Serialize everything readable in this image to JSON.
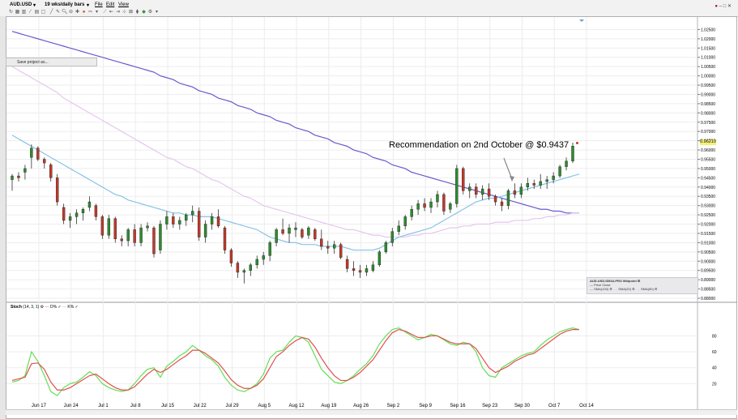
{
  "toolbar": {
    "symbol": "AUD.USD",
    "period": "19 wks/daily bars",
    "menus": [
      "File",
      "Edit",
      "View"
    ],
    "window_controls": "– □ ✕"
  },
  "context_menu": {
    "item": "Save project as..."
  },
  "annotation": "Recommendation on 2nd October @ $0.9437",
  "price_tag": "0.96210",
  "legend": {
    "title": "AUD.USD.IDEALPRO Midpoint",
    "price_close": "Price Close",
    "sma100": "SMA(100)",
    "sma20": "SMA(20)",
    "sma50": "SMA(50)"
  },
  "stoch_legend": {
    "name": "Stoch",
    "params": "(14, 3, 1)",
    "d_label": "D%",
    "k_label": "K%"
  },
  "colors": {
    "up": "#2e8b2e",
    "down": "#c0392b",
    "sma100": "#6a5acd",
    "sma20": "#87c3e8",
    "sma50": "#e6c6ee",
    "stoch_d": "#e05050",
    "stoch_k": "#66dd55"
  },
  "chart_data": {
    "type": "candlestick",
    "price_axis": {
      "ylim": [
        0.88,
        1.03
      ],
      "ticks": [
        "1.02500",
        "1.02000",
        "1.01500",
        "1.01000",
        "1.00500",
        "1.00000",
        "0.99500",
        "0.99000",
        "0.98500",
        "0.98000",
        "0.97500",
        "0.97000",
        "0.96500",
        "0.96000",
        "0.95500",
        "0.95000",
        "0.94500",
        "0.94000",
        "0.93500",
        "0.93000",
        "0.92500",
        "0.92000",
        "0.91500",
        "0.91000",
        "0.90500",
        "0.90000",
        "0.89500",
        "0.89000",
        "0.88500",
        "0.88000"
      ]
    },
    "x_labels": [
      "Jun 17",
      "Jun 24",
      "Jul 1",
      "Jul 8",
      "Jul 15",
      "Jul 22",
      "Jul 29",
      "Aug 5",
      "Aug 12",
      "Aug 19",
      "Aug 26",
      "Sep 2",
      "Sep 9",
      "Sep 16",
      "Sep 23",
      "Sep 30",
      "Oct 7",
      "Oct 14"
    ],
    "candles": [
      [
        0.944,
        0.947,
        0.938,
        0.946
      ],
      [
        0.946,
        0.948,
        0.943,
        0.945
      ],
      [
        0.948,
        0.952,
        0.944,
        0.95
      ],
      [
        0.956,
        0.963,
        0.95,
        0.961
      ],
      [
        0.961,
        0.962,
        0.954,
        0.955
      ],
      [
        0.955,
        0.956,
        0.95,
        0.953
      ],
      [
        0.952,
        0.953,
        0.943,
        0.945
      ],
      [
        0.945,
        0.947,
        0.93,
        0.932
      ],
      [
        0.929,
        0.931,
        0.92,
        0.922
      ],
      [
        0.922,
        0.926,
        0.918,
        0.924
      ],
      [
        0.924,
        0.928,
        0.92,
        0.926
      ],
      [
        0.926,
        0.929,
        0.922,
        0.928
      ],
      [
        0.929,
        0.935,
        0.927,
        0.932
      ],
      [
        0.93,
        0.931,
        0.922,
        0.924
      ],
      [
        0.924,
        0.925,
        0.912,
        0.914
      ],
      [
        0.914,
        0.925,
        0.912,
        0.923
      ],
      [
        0.923,
        0.924,
        0.91,
        0.912
      ],
      [
        0.912,
        0.914,
        0.908,
        0.911
      ],
      [
        0.911,
        0.918,
        0.908,
        0.917
      ],
      [
        0.917,
        0.92,
        0.908,
        0.91
      ],
      [
        0.91,
        0.92,
        0.908,
        0.918
      ],
      [
        0.918,
        0.921,
        0.916,
        0.919
      ],
      [
        0.918,
        0.919,
        0.902,
        0.904
      ],
      [
        0.906,
        0.922,
        0.904,
        0.92
      ],
      [
        0.92,
        0.927,
        0.917,
        0.924
      ],
      [
        0.924,
        0.926,
        0.918,
        0.92
      ],
      [
        0.92,
        0.924,
        0.917,
        0.922
      ],
      [
        0.922,
        0.926,
        0.919,
        0.925
      ],
      [
        0.925,
        0.93,
        0.921,
        0.927
      ],
      [
        0.927,
        0.929,
        0.911,
        0.913
      ],
      [
        0.913,
        0.922,
        0.91,
        0.92
      ],
      [
        0.92,
        0.926,
        0.917,
        0.924
      ],
      [
        0.924,
        0.928,
        0.918,
        0.919
      ],
      [
        0.918,
        0.919,
        0.904,
        0.906
      ],
      [
        0.906,
        0.907,
        0.897,
        0.899
      ],
      [
        0.899,
        0.9,
        0.891,
        0.894
      ],
      [
        0.894,
        0.896,
        0.888,
        0.895
      ],
      [
        0.895,
        0.899,
        0.892,
        0.898
      ],
      [
        0.898,
        0.903,
        0.896,
        0.901
      ],
      [
        0.901,
        0.905,
        0.898,
        0.903
      ],
      [
        0.903,
        0.911,
        0.9,
        0.91
      ],
      [
        0.91,
        0.918,
        0.908,
        0.917
      ],
      [
        0.917,
        0.923,
        0.914,
        0.915
      ],
      [
        0.915,
        0.92,
        0.91,
        0.918
      ],
      [
        0.917,
        0.921,
        0.913,
        0.918
      ],
      [
        0.917,
        0.918,
        0.912,
        0.913
      ],
      [
        0.914,
        0.919,
        0.912,
        0.918
      ],
      [
        0.917,
        0.918,
        0.911,
        0.912
      ],
      [
        0.912,
        0.917,
        0.906,
        0.908
      ],
      [
        0.908,
        0.911,
        0.904,
        0.907
      ],
      [
        0.907,
        0.911,
        0.904,
        0.909
      ],
      [
        0.909,
        0.91,
        0.901,
        0.902
      ],
      [
        0.901,
        0.903,
        0.894,
        0.896
      ],
      [
        0.896,
        0.9,
        0.892,
        0.895
      ],
      [
        0.895,
        0.898,
        0.891,
        0.894
      ],
      [
        0.894,
        0.898,
        0.892,
        0.896
      ],
      [
        0.895,
        0.9,
        0.894,
        0.898
      ],
      [
        0.898,
        0.906,
        0.897,
        0.905
      ],
      [
        0.905,
        0.911,
        0.904,
        0.91
      ],
      [
        0.91,
        0.918,
        0.908,
        0.916
      ],
      [
        0.916,
        0.922,
        0.914,
        0.919
      ],
      [
        0.919,
        0.925,
        0.917,
        0.924
      ],
      [
        0.924,
        0.93,
        0.922,
        0.928
      ],
      [
        0.928,
        0.933,
        0.925,
        0.931
      ],
      [
        0.931,
        0.934,
        0.927,
        0.929
      ],
      [
        0.929,
        0.934,
        0.926,
        0.932
      ],
      [
        0.932,
        0.938,
        0.929,
        0.936
      ],
      [
        0.936,
        0.937,
        0.925,
        0.927
      ],
      [
        0.928,
        0.932,
        0.926,
        0.931
      ],
      [
        0.931,
        0.952,
        0.929,
        0.95
      ],
      [
        0.95,
        0.951,
        0.936,
        0.938
      ],
      [
        0.938,
        0.942,
        0.934,
        0.94
      ],
      [
        0.94,
        0.942,
        0.934,
        0.936
      ],
      [
        0.936,
        0.941,
        0.933,
        0.939
      ],
      [
        0.939,
        0.942,
        0.933,
        0.935
      ],
      [
        0.935,
        0.936,
        0.93,
        0.932
      ],
      [
        0.932,
        0.934,
        0.927,
        0.93
      ],
      [
        0.93,
        0.939,
        0.928,
        0.938
      ],
      [
        0.938,
        0.942,
        0.934,
        0.936
      ],
      [
        0.936,
        0.942,
        0.934,
        0.94
      ],
      [
        0.94,
        0.945,
        0.938,
        0.942
      ],
      [
        0.942,
        0.944,
        0.939,
        0.941
      ],
      [
        0.941,
        0.947,
        0.939,
        0.943
      ],
      [
        0.943,
        0.946,
        0.939,
        0.944
      ],
      [
        0.944,
        0.948,
        0.942,
        0.946
      ],
      [
        0.946,
        0.952,
        0.945,
        0.951
      ],
      [
        0.951,
        0.956,
        0.949,
        0.954
      ],
      [
        0.954,
        0.964,
        0.953,
        0.9621
      ]
    ],
    "sma100": [
      1.024,
      1.023,
      1.022,
      1.021,
      1.02,
      1.019,
      1.018,
      1.017,
      1.016,
      1.015,
      1.014,
      1.013,
      1.012,
      1.011,
      1.01,
      1.009,
      1.008,
      1.007,
      1.006,
      1.005,
      1.004,
      1.003,
      1.002,
      1.0,
      0.999,
      0.998,
      0.996,
      0.995,
      0.994,
      0.992,
      0.991,
      0.99,
      0.988,
      0.987,
      0.986,
      0.984,
      0.983,
      0.982,
      0.98,
      0.979,
      0.978,
      0.976,
      0.975,
      0.974,
      0.972,
      0.971,
      0.97,
      0.968,
      0.967,
      0.966,
      0.964,
      0.963,
      0.962,
      0.96,
      0.959,
      0.958,
      0.956,
      0.955,
      0.954,
      0.952,
      0.951,
      0.95,
      0.948,
      0.947,
      0.946,
      0.945,
      0.944,
      0.943,
      0.942,
      0.941,
      0.94,
      0.939,
      0.938,
      0.937,
      0.936,
      0.935,
      0.934,
      0.933,
      0.932,
      0.931,
      0.93,
      0.929,
      0.928,
      0.928,
      0.927,
      0.927,
      0.926,
      0.926,
      0.926
    ],
    "sma50": [
      1.005,
      1.003,
      1.001,
      0.999,
      0.997,
      0.995,
      0.993,
      0.991,
      0.988,
      0.986,
      0.984,
      0.982,
      0.98,
      0.978,
      0.976,
      0.974,
      0.972,
      0.97,
      0.968,
      0.966,
      0.964,
      0.962,
      0.96,
      0.958,
      0.956,
      0.955,
      0.953,
      0.951,
      0.95,
      0.948,
      0.946,
      0.944,
      0.943,
      0.941,
      0.939,
      0.937,
      0.935,
      0.934,
      0.932,
      0.93,
      0.929,
      0.928,
      0.927,
      0.926,
      0.925,
      0.924,
      0.923,
      0.922,
      0.921,
      0.92,
      0.919,
      0.918,
      0.917,
      0.917,
      0.916,
      0.915,
      0.914,
      0.914,
      0.913,
      0.913,
      0.913,
      0.913,
      0.914,
      0.914,
      0.915,
      0.915,
      0.916,
      0.917,
      0.918,
      0.918,
      0.919,
      0.919,
      0.92,
      0.92,
      0.92,
      0.921,
      0.921,
      0.921,
      0.922,
      0.922,
      0.922,
      0.923,
      0.923,
      0.924,
      0.924,
      0.925,
      0.925,
      0.926,
      0.926
    ],
    "sma20": [
      0.968,
      0.966,
      0.964,
      0.962,
      0.96,
      0.958,
      0.956,
      0.954,
      0.952,
      0.95,
      0.948,
      0.946,
      0.944,
      0.942,
      0.94,
      0.938,
      0.936,
      0.935,
      0.933,
      0.932,
      0.931,
      0.93,
      0.929,
      0.928,
      0.927,
      0.926,
      0.926,
      0.925,
      0.925,
      0.924,
      0.924,
      0.924,
      0.923,
      0.922,
      0.921,
      0.92,
      0.919,
      0.918,
      0.917,
      0.915,
      0.913,
      0.912,
      0.911,
      0.91,
      0.91,
      0.909,
      0.909,
      0.909,
      0.908,
      0.908,
      0.908,
      0.908,
      0.907,
      0.906,
      0.906,
      0.906,
      0.906,
      0.907,
      0.909,
      0.911,
      0.913,
      0.914,
      0.915,
      0.916,
      0.917,
      0.918,
      0.92,
      0.922,
      0.924,
      0.926,
      0.928,
      0.93,
      0.932,
      0.933,
      0.934,
      0.934,
      0.935,
      0.936,
      0.937,
      0.938,
      0.939,
      0.94,
      0.941,
      0.942,
      0.943,
      0.944,
      0.945,
      0.946,
      0.947
    ],
    "stoch_axis": {
      "ylim": [
        0,
        110
      ],
      "ticks": [
        "80",
        "60",
        "40",
        "20"
      ]
    },
    "stoch_k": [
      22,
      24,
      30,
      60,
      48,
      30,
      10,
      5,
      15,
      20,
      22,
      28,
      35,
      30,
      20,
      15,
      12,
      10,
      12,
      20,
      30,
      38,
      40,
      28,
      42,
      48,
      55,
      60,
      68,
      62,
      55,
      50,
      42,
      28,
      18,
      12,
      10,
      14,
      20,
      32,
      52,
      60,
      62,
      72,
      80,
      78,
      72,
      55,
      38,
      30,
      22,
      20,
      24,
      30,
      38,
      45,
      55,
      70,
      80,
      88,
      90,
      85,
      80,
      75,
      78,
      82,
      80,
      75,
      70,
      68,
      72,
      70,
      60,
      40,
      30,
      28,
      40,
      45,
      50,
      55,
      58,
      60,
      68,
      75,
      80,
      85,
      88,
      90,
      88
    ],
    "stoch_d": [
      24,
      26,
      28,
      45,
      46,
      38,
      22,
      12,
      12,
      15,
      20,
      25,
      30,
      32,
      26,
      20,
      15,
      12,
      12,
      16,
      24,
      32,
      38,
      34,
      38,
      44,
      50,
      55,
      62,
      62,
      58,
      52,
      46,
      36,
      25,
      18,
      14,
      14,
      18,
      26,
      40,
      54,
      60,
      68,
      74,
      78,
      76,
      66,
      52,
      40,
      30,
      24,
      24,
      28,
      34,
      42,
      50,
      62,
      74,
      84,
      88,
      86,
      82,
      78,
      78,
      80,
      80,
      76,
      72,
      70,
      70,
      70,
      64,
      52,
      40,
      34,
      38,
      42,
      48,
      52,
      56,
      58,
      64,
      70,
      76,
      82,
      86,
      88,
      88
    ]
  }
}
